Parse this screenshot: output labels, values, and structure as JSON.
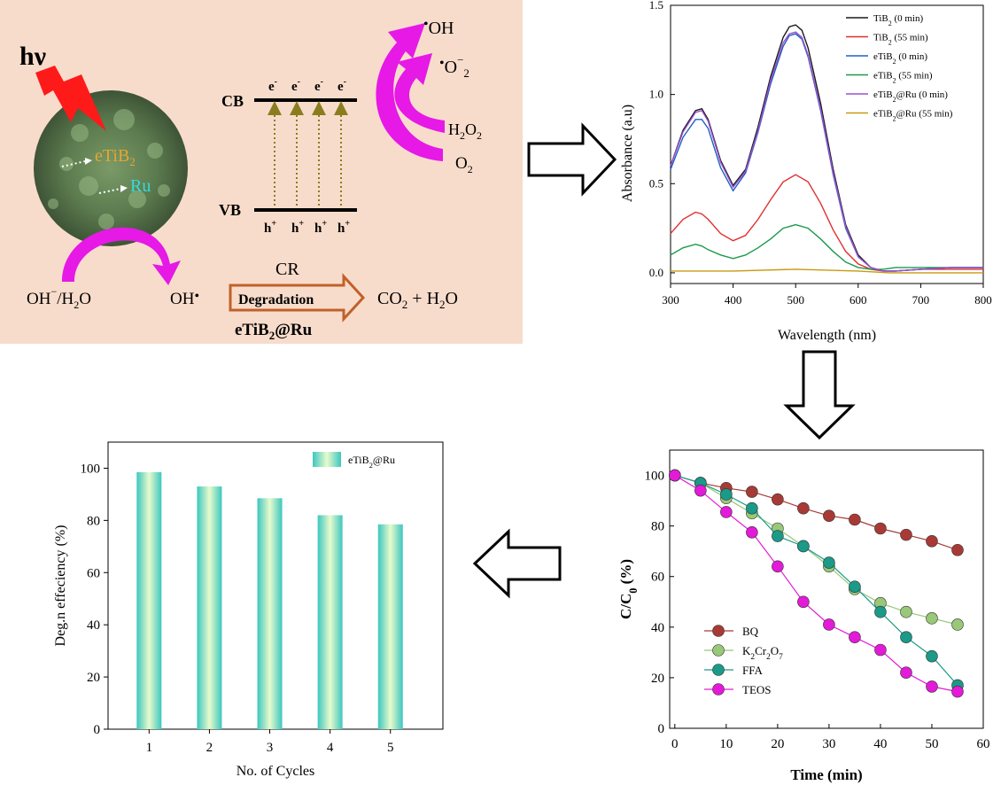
{
  "mechanism": {
    "hv": "hν",
    "etib2_label": "eTiB",
    "ru_label": "Ru",
    "cb": "CB",
    "vb": "VB",
    "electron": "e",
    "hole": "h",
    "products": {
      "oh_radical": "OH",
      "superoxide": "O",
      "h2o2": "H",
      "o2": "O"
    },
    "oh_source": "OH",
    "oh_source_suffix": "/H",
    "oh_product": "OH",
    "pollutant": "CR",
    "degradation": "Degradation",
    "final_products": "CO",
    "catalyst": "eTiB",
    "catalyst_suffix": "@Ru"
  },
  "colors": {
    "panel_bg": "#f8dccb",
    "arrow_magenta": "#e619e6",
    "bolt_red": "#ff1a1a",
    "hole_arrow": "#8a7d1f",
    "degradation_arrow": "#c0612a",
    "etib2_text": "#e6a62e",
    "ru_text": "#33dcdc",
    "bar_fill_edge": "#3cc7c0",
    "bar_fill_center": "#e8fbcc"
  },
  "chart_data": [
    {
      "type": "line",
      "xlabel": "Wavelength (nm)",
      "ylabel": "Absorbance (a.u)",
      "xlim": [
        300,
        800
      ],
      "ylim": [
        -0.06,
        1.5
      ],
      "xticks": [
        300,
        400,
        500,
        600,
        700,
        800
      ],
      "yticks": [
        0.0,
        0.5,
        1.0,
        1.5
      ],
      "ytick_labels": [
        "0.0",
        "0.5",
        "1.0",
        "1.5"
      ],
      "legend_position": "top-right",
      "series": [
        {
          "name": "TiB2 (0 min)",
          "legend": [
            "TiB",
            "2",
            " (0 min)"
          ],
          "color": "#1a1a1a",
          "x": [
            300,
            320,
            340,
            350,
            360,
            380,
            400,
            420,
            440,
            460,
            480,
            490,
            500,
            510,
            520,
            540,
            560,
            580,
            600,
            620,
            640,
            660,
            700,
            750,
            800
          ],
          "y": [
            0.6,
            0.8,
            0.91,
            0.92,
            0.86,
            0.63,
            0.49,
            0.58,
            0.82,
            1.1,
            1.32,
            1.38,
            1.39,
            1.36,
            1.26,
            0.95,
            0.58,
            0.27,
            0.1,
            0.03,
            0.01,
            0.01,
            0.02,
            0.03,
            0.03
          ]
        },
        {
          "name": "TiB2 (55 min)",
          "legend": [
            "TiB",
            "2",
            " (55 min)"
          ],
          "color": "#e03030",
          "x": [
            300,
            320,
            340,
            350,
            360,
            380,
            400,
            420,
            440,
            460,
            480,
            500,
            520,
            540,
            560,
            580,
            600,
            620,
            640,
            660,
            700,
            750,
            800
          ],
          "y": [
            0.22,
            0.3,
            0.34,
            0.33,
            0.3,
            0.22,
            0.18,
            0.21,
            0.3,
            0.41,
            0.51,
            0.55,
            0.51,
            0.39,
            0.24,
            0.12,
            0.05,
            0.02,
            0.01,
            0.01,
            0.02,
            0.02,
            0.02
          ]
        },
        {
          "name": "eTiB2 (0 min)",
          "legend": [
            "eTiB",
            "2",
            " (0 min)"
          ],
          "color": "#2060c0",
          "x": [
            300,
            320,
            340,
            350,
            360,
            380,
            400,
            420,
            440,
            460,
            480,
            490,
            500,
            510,
            520,
            540,
            560,
            580,
            600,
            620,
            640,
            660,
            700,
            750,
            800
          ],
          "y": [
            0.58,
            0.76,
            0.86,
            0.86,
            0.81,
            0.59,
            0.46,
            0.56,
            0.79,
            1.06,
            1.27,
            1.33,
            1.34,
            1.31,
            1.21,
            0.91,
            0.55,
            0.25,
            0.09,
            0.03,
            0.01,
            0.01,
            0.02,
            0.03,
            0.03
          ]
        },
        {
          "name": "eTiB2 (55 min)",
          "legend": [
            "eTiB",
            "2",
            " (55 min)"
          ],
          "color": "#1a9a4a",
          "x": [
            300,
            320,
            340,
            350,
            360,
            380,
            400,
            420,
            440,
            460,
            480,
            500,
            520,
            540,
            560,
            580,
            600,
            620,
            640,
            660,
            700,
            750,
            800
          ],
          "y": [
            0.1,
            0.14,
            0.16,
            0.15,
            0.13,
            0.1,
            0.08,
            0.1,
            0.14,
            0.19,
            0.25,
            0.27,
            0.25,
            0.19,
            0.12,
            0.06,
            0.03,
            0.02,
            0.02,
            0.03,
            0.03,
            0.03,
            0.03
          ]
        },
        {
          "name": "eTiB2@Ru (0 min)",
          "legend": [
            "eTiB",
            "2",
            "@Ru (0 min)"
          ],
          "color": "#9a50d0",
          "x": [
            300,
            320,
            340,
            350,
            360,
            380,
            400,
            420,
            440,
            460,
            480,
            490,
            500,
            510,
            520,
            540,
            560,
            580,
            600,
            620,
            640,
            660,
            700,
            750,
            800
          ],
          "y": [
            0.6,
            0.79,
            0.9,
            0.91,
            0.85,
            0.62,
            0.48,
            0.57,
            0.8,
            1.08,
            1.29,
            1.34,
            1.35,
            1.32,
            1.22,
            0.92,
            0.56,
            0.26,
            0.09,
            0.03,
            0.01,
            0.01,
            0.02,
            0.03,
            0.03
          ]
        },
        {
          "name": "eTiB2@Ru (55 min)",
          "legend": [
            "eTiB",
            "2",
            "@Ru (55 min)"
          ],
          "color": "#c89a10",
          "x": [
            300,
            400,
            500,
            600,
            650,
            700,
            800
          ],
          "y": [
            0.01,
            0.01,
            0.02,
            0.01,
            0.0,
            0.0,
            0.0
          ]
        }
      ]
    },
    {
      "type": "scatter",
      "xlabel": "Time (min)",
      "ylabel_main": "C/C",
      "ylabel_sub": "0",
      "ylabel_tail": " (%)",
      "xlim": [
        -1,
        60
      ],
      "ylim": [
        0,
        110
      ],
      "xticks": [
        0,
        10,
        20,
        30,
        40,
        50,
        60
      ],
      "yticks": [
        0,
        20,
        40,
        60,
        80,
        100
      ],
      "legend_position": "bottom-left",
      "x": [
        0,
        5,
        10,
        15,
        20,
        25,
        30,
        35,
        40,
        45,
        50,
        55
      ],
      "series": [
        {
          "name": "BQ",
          "legend": [
            "BQ",
            "",
            ""
          ],
          "color": "#a83a36",
          "values": [
            100,
            97,
            95,
            93.5,
            90.5,
            87,
            84,
            82.5,
            79,
            76.5,
            74,
            70.5
          ]
        },
        {
          "name": "K2Cr2O7",
          "legend": [
            "K",
            "2",
            "Cr",
            "2",
            "O",
            "7"
          ],
          "color": "#98c878",
          "values": [
            100,
            97,
            91,
            85,
            79,
            72,
            64,
            55,
            49.5,
            46,
            43.5,
            41
          ]
        },
        {
          "name": "FFA",
          "legend": [
            "FFA",
            "",
            ""
          ],
          "color": "#1a9a88",
          "values": [
            100,
            97,
            92.5,
            87,
            76,
            72,
            65.5,
            56,
            46,
            36,
            28.5,
            17
          ]
        },
        {
          "name": "TEOS",
          "legend": [
            "TEOS",
            "",
            ""
          ],
          "color": "#e31ad8",
          "values": [
            100,
            94,
            85.5,
            77.5,
            64,
            50,
            41,
            36,
            31,
            22,
            16.5,
            14.5
          ]
        }
      ]
    },
    {
      "type": "bar",
      "xlabel": "No. of Cycles",
      "ylabel": "Deg.n effeciency (%)",
      "categories": [
        "1",
        "2",
        "3",
        "4",
        "5"
      ],
      "yticks": [
        0,
        20,
        40,
        60,
        80,
        100
      ],
      "ylim": [
        0,
        110
      ],
      "legend_position": "top-right",
      "series": [
        {
          "name": "eTiB2@Ru",
          "legend": [
            "eTiB",
            "2",
            "@Ru"
          ],
          "values": [
            98.5,
            93,
            88.5,
            82,
            78.5
          ]
        }
      ]
    }
  ]
}
